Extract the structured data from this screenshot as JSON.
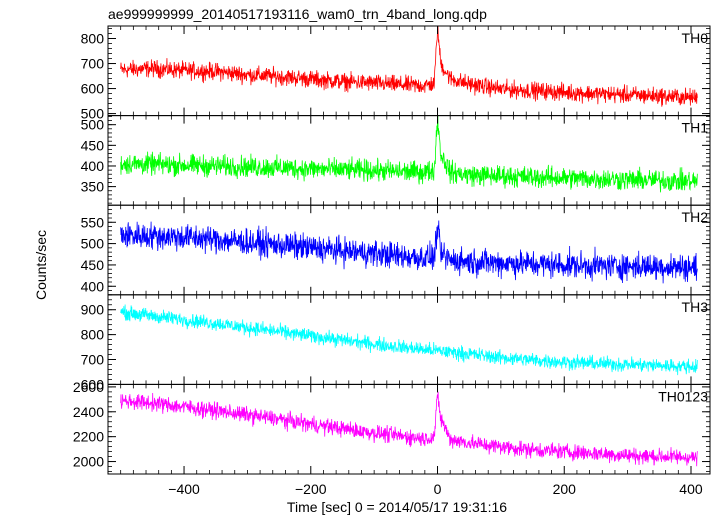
{
  "chart_data": {
    "type": "line",
    "title": "ae999999999_20140517193116_wam0_trn_4band_long.qdp",
    "xlabel": "Time [sec] 0 = 2014/05/17 19:31:16",
    "ylabel": "Counts/sec",
    "xlim": [
      -520,
      430
    ],
    "xticks": [
      -400,
      -200,
      0,
      200,
      400
    ],
    "panels": [
      {
        "name": "TH0",
        "color": "#ff0000",
        "ylim": [
          492,
          850
        ],
        "yticks": [
          500,
          600,
          700,
          800
        ],
        "x": [
          -500,
          -450,
          -400,
          -350,
          -300,
          -250,
          -200,
          -150,
          -100,
          -50,
          -20,
          -5,
          0,
          5,
          20,
          50,
          100,
          150,
          200,
          250,
          300,
          350,
          400,
          410
        ],
        "y": [
          675,
          680,
          672,
          668,
          655,
          648,
          638,
          628,
          622,
          614,
          612,
          620,
          850,
          700,
          640,
          618,
          598,
          592,
          585,
          580,
          575,
          570,
          565,
          565
        ],
        "noise": 24
      },
      {
        "name": "TH1",
        "color": "#00ff00",
        "ylim": [
          305,
          522
        ],
        "yticks": [
          350,
          400,
          450,
          500
        ],
        "x": [
          -500,
          -450,
          -400,
          -350,
          -300,
          -250,
          -200,
          -150,
          -100,
          -50,
          -20,
          -5,
          0,
          5,
          20,
          50,
          100,
          150,
          200,
          250,
          300,
          350,
          400,
          410
        ],
        "y": [
          405,
          404,
          402,
          400,
          398,
          396,
          393,
          391,
          389,
          386,
          385,
          390,
          520,
          430,
          385,
          378,
          376,
          373,
          371,
          369,
          367,
          365,
          363,
          363
        ],
        "noise": 18
      },
      {
        "name": "TH2",
        "color": "#0000ff",
        "ylim": [
          380,
          590
        ],
        "yticks": [
          400,
          450,
          500,
          550
        ],
        "x": [
          -500,
          -450,
          -400,
          -350,
          -300,
          -250,
          -200,
          -150,
          -100,
          -50,
          -20,
          -5,
          0,
          5,
          20,
          50,
          100,
          150,
          200,
          250,
          300,
          350,
          400,
          410
        ],
        "y": [
          520,
          518,
          515,
          510,
          503,
          497,
          490,
          483,
          477,
          470,
          467,
          468,
          540,
          475,
          462,
          458,
          455,
          452,
          450,
          448,
          447,
          446,
          445,
          445
        ],
        "noise": 22
      },
      {
        "name": "TH3",
        "color": "#00ffff",
        "ylim": [
          600,
          960
        ],
        "yticks": [
          600,
          700,
          800,
          900
        ],
        "x": [
          -500,
          -450,
          -400,
          -350,
          -300,
          -250,
          -200,
          -150,
          -100,
          -50,
          -20,
          0,
          20,
          50,
          100,
          150,
          200,
          250,
          300,
          350,
          400,
          410
        ],
        "y": [
          890,
          875,
          860,
          845,
          828,
          812,
          795,
          778,
          762,
          748,
          740,
          735,
          730,
          722,
          708,
          698,
          690,
          684,
          680,
          676,
          672,
          672
        ],
        "noise": 20
      },
      {
        "name": "TH0123",
        "color": "#ff00ff",
        "ylim": [
          1900,
          2620
        ],
        "yticks": [
          2000,
          2200,
          2400,
          2600
        ],
        "x": [
          -500,
          -450,
          -400,
          -350,
          -300,
          -250,
          -200,
          -150,
          -100,
          -50,
          -20,
          -5,
          0,
          5,
          20,
          50,
          100,
          150,
          200,
          250,
          300,
          350,
          400,
          410
        ],
        "y": [
          2490,
          2470,
          2440,
          2410,
          2375,
          2340,
          2300,
          2265,
          2230,
          2200,
          2185,
          2200,
          2530,
          2350,
          2180,
          2150,
          2120,
          2095,
          2080,
          2065,
          2050,
          2040,
          2035,
          2035
        ],
        "noise": 45
      }
    ]
  }
}
